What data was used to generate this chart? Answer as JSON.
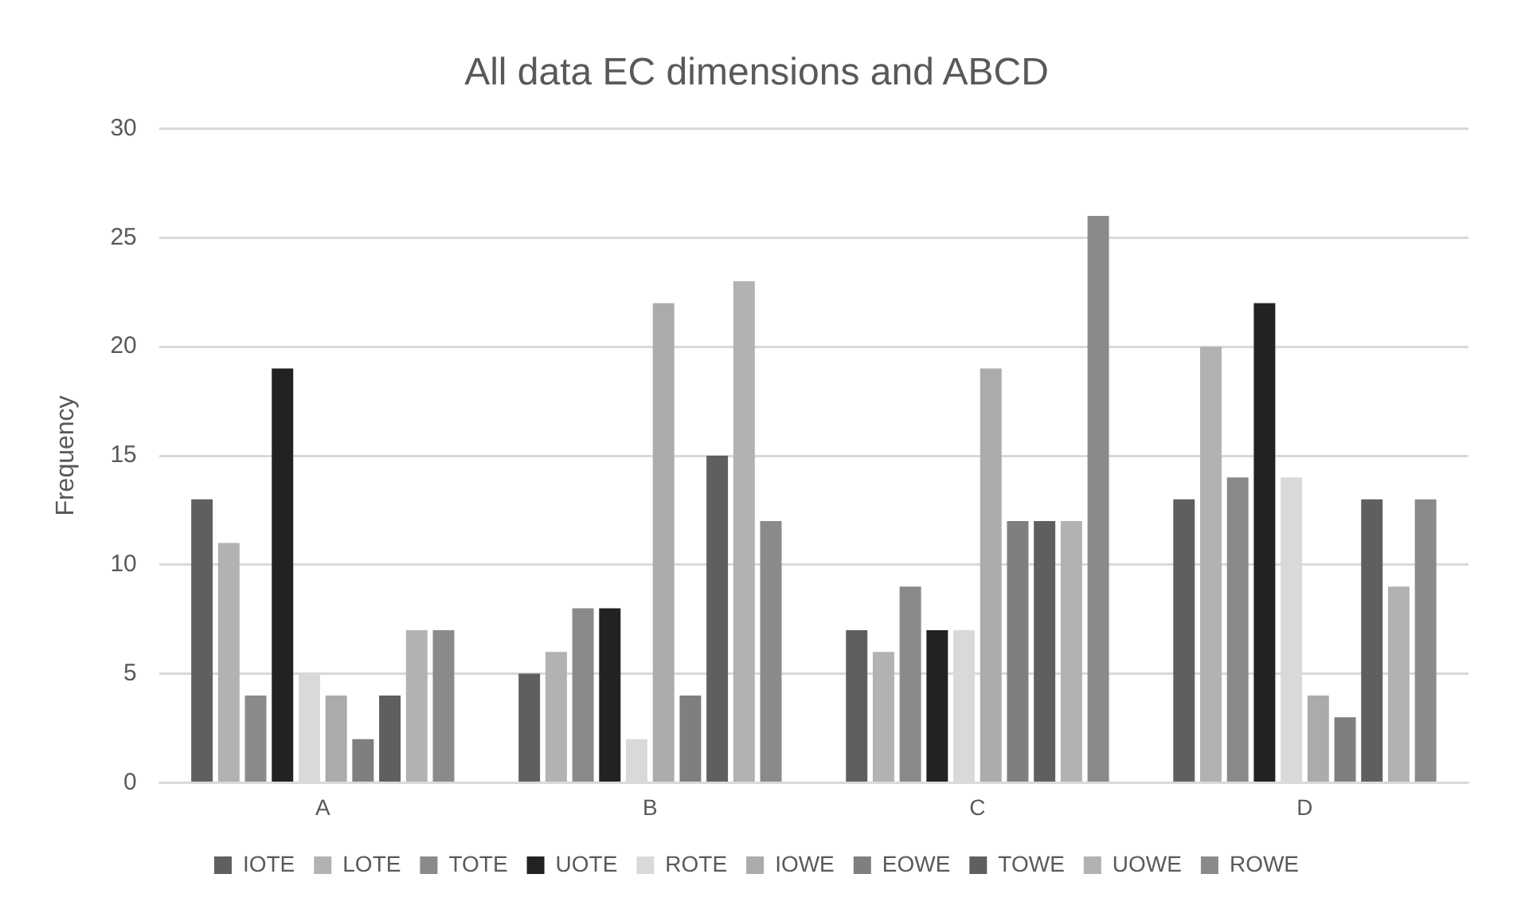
{
  "chart_data": {
    "type": "bar",
    "title": "All data EC dimensions and ABCD",
    "ylabel": "Frequency",
    "categories": [
      "A",
      "B",
      "C",
      "D"
    ],
    "series": [
      {
        "name": "IOTE",
        "color": "#5f5f5f",
        "values": [
          13,
          5,
          7,
          13
        ]
      },
      {
        "name": "LOTE",
        "color": "#b2b2b2",
        "values": [
          11,
          6,
          6,
          20
        ]
      },
      {
        "name": "TOTE",
        "color": "#8a8a8a",
        "values": [
          4,
          8,
          9,
          14
        ]
      },
      {
        "name": "UOTE",
        "color": "#222222",
        "values": [
          19,
          8,
          7,
          22
        ]
      },
      {
        "name": "ROTE",
        "color": "#d9d9d9",
        "values": [
          5,
          2,
          7,
          14
        ]
      },
      {
        "name": "IOWE",
        "color": "#ababab",
        "values": [
          4,
          22,
          19,
          4
        ]
      },
      {
        "name": "EOWE",
        "color": "#7f7f7f",
        "values": [
          2,
          4,
          12,
          3
        ]
      },
      {
        "name": "TOWE",
        "color": "#5f5f5f",
        "values": [
          4,
          15,
          12,
          13
        ]
      },
      {
        "name": "UOWE",
        "color": "#b2b2b2",
        "values": [
          7,
          23,
          12,
          9
        ]
      },
      {
        "name": "ROWE",
        "color": "#8a8a8a",
        "values": [
          7,
          12,
          26,
          13
        ]
      }
    ],
    "ylim": [
      0,
      30
    ],
    "yticks": [
      0,
      5,
      10,
      15,
      20,
      25,
      30
    ],
    "grid": "y",
    "legend": "bottom"
  }
}
